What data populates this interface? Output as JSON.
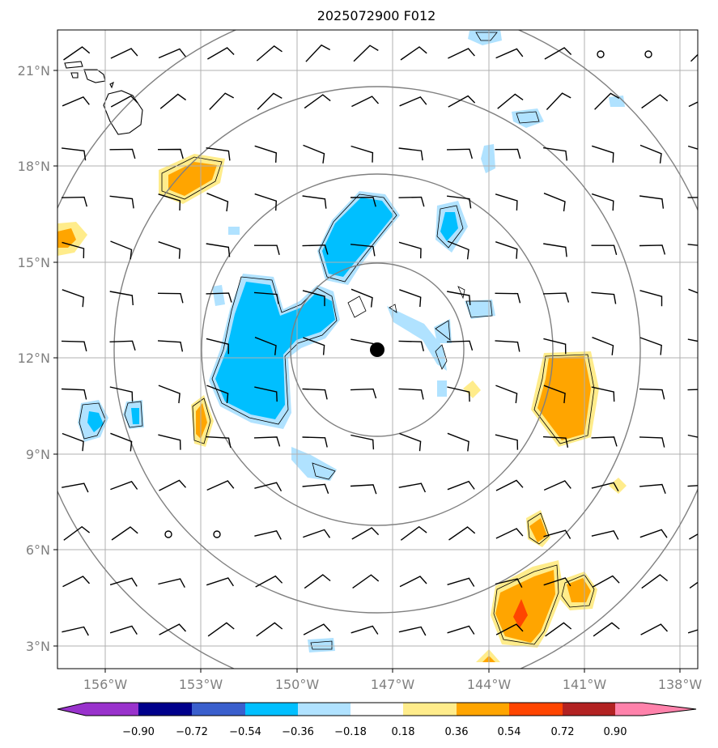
{
  "title": "2025072900 F012",
  "lon_labels": [
    "156°W",
    "153°W",
    "150°W",
    "147°W",
    "144°W",
    "141°W",
    "138°W"
  ],
  "lat_labels": [
    "21°N",
    "18°N",
    "15°N",
    "12°N",
    "9°N",
    "6°N",
    "3°N"
  ],
  "colorbar": {
    "tick_labels": [
      "−0.90",
      "−0.72",
      "−0.54",
      "−0.36",
      "−0.18",
      "0.18",
      "0.36",
      "0.54",
      "0.72",
      "0.90"
    ],
    "colors": [
      "#9932cc",
      "#00008b",
      "#3a5fcd",
      "#00bfff",
      "#b0e2ff",
      "#ffffff",
      "#ffec8b",
      "#ffa500",
      "#ff4500",
      "#b22222",
      "#ff82ab"
    ]
  },
  "map": {
    "lon_range": [
      -157.5,
      -137.5
    ],
    "lat_range": [
      2.3,
      22.3
    ],
    "center": {
      "lon": -147.5,
      "lat": 12.2
    },
    "range_ring_radii_deg": [
      2.7,
      5.5,
      8.2,
      10.9
    ]
  }
}
